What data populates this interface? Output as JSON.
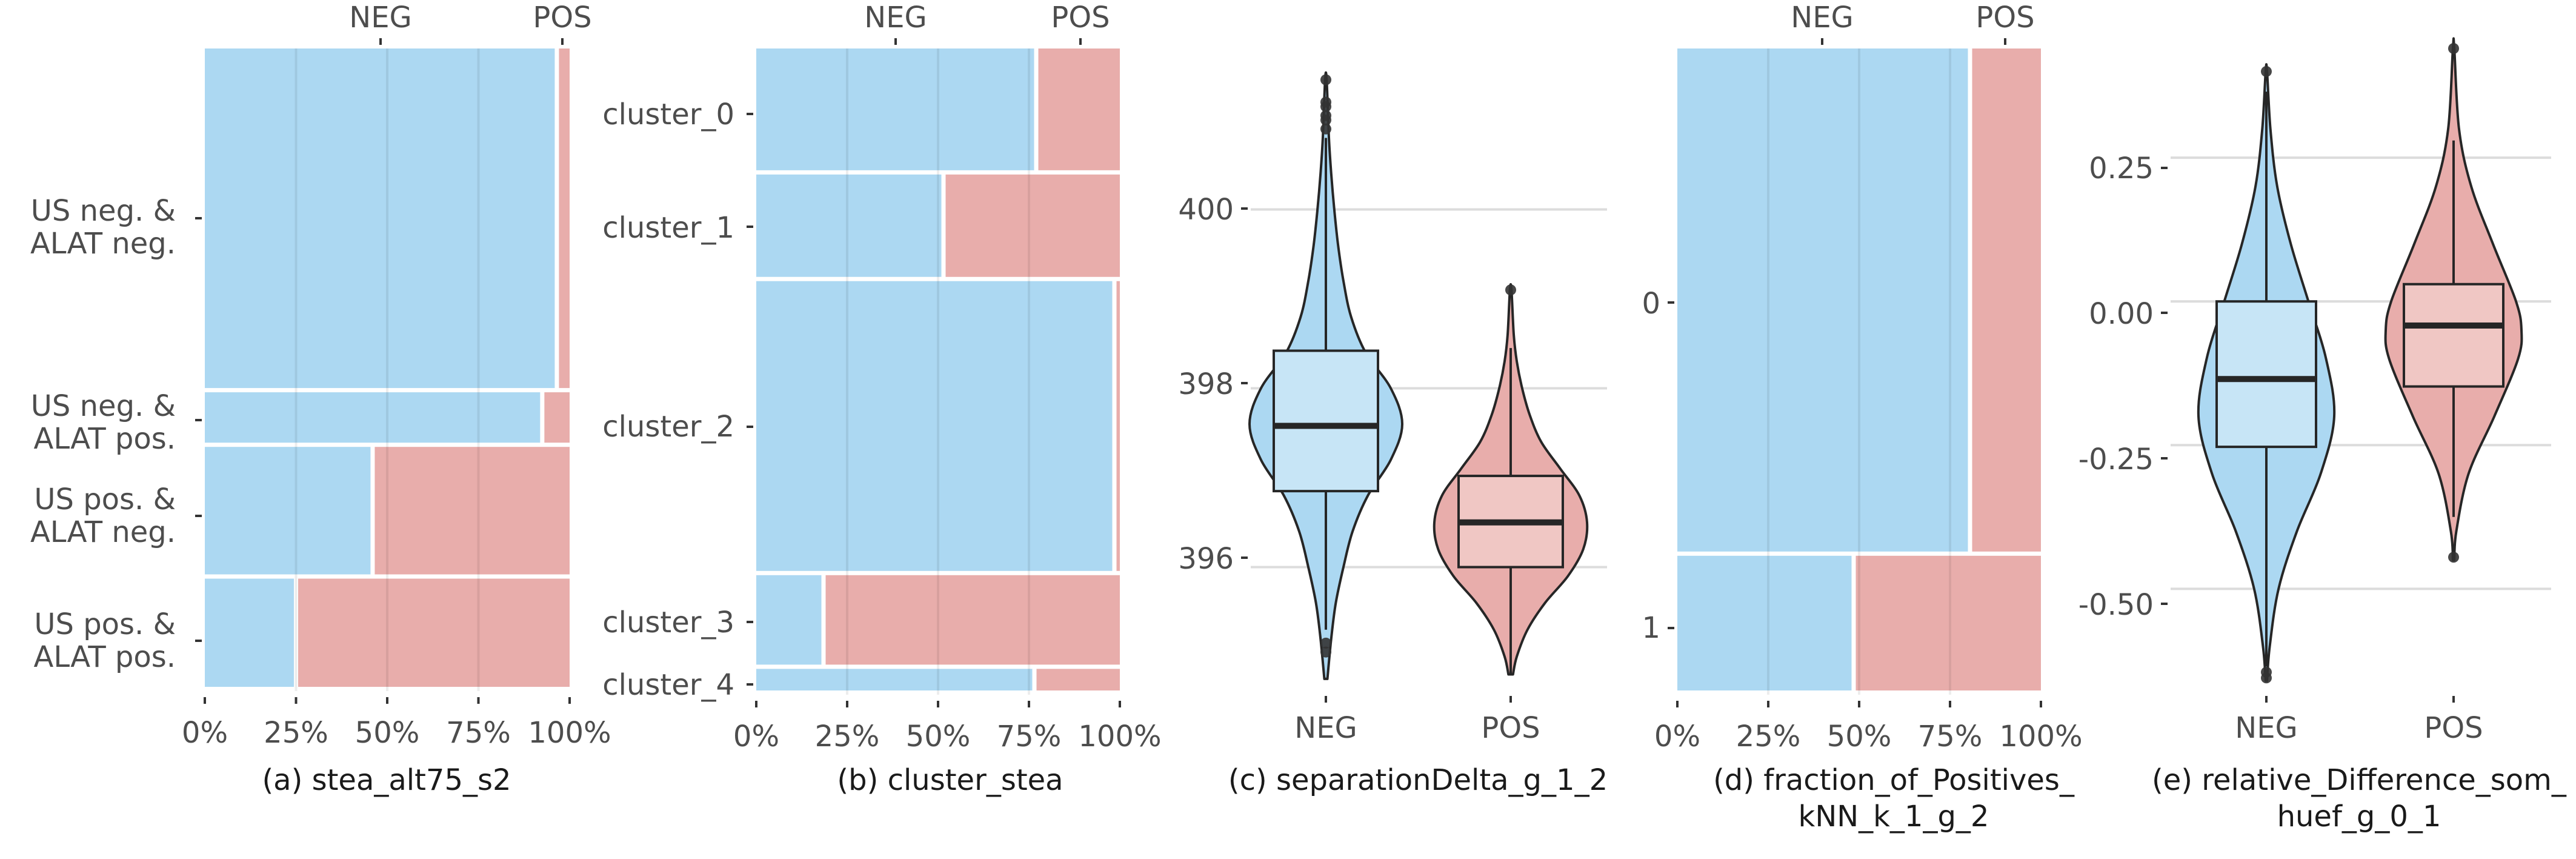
{
  "colors": {
    "neg": "#acd8f2",
    "pos": "#e8adab",
    "neg_box": "#c7e5f6",
    "pos_box": "#f0c7c4",
    "grid": "#dcdcdc",
    "outline": "#262626"
  },
  "panel_a": {
    "caption": "(a) stea_alt75_s2",
    "top_labels": [
      "NEG",
      "POS"
    ],
    "x_ticks": [
      "0%",
      "25%",
      "50%",
      "75%",
      "100%"
    ]
  },
  "panel_b": {
    "caption": "(b) cluster_stea",
    "top_labels": [
      "NEG",
      "POS"
    ],
    "x_ticks": [
      "0%",
      "25%",
      "50%",
      "75%",
      "100%"
    ]
  },
  "panel_c": {
    "caption": "(c) separationDelta_g_1_2",
    "x_labels": [
      "NEG",
      "POS"
    ],
    "y_ticks": [
      "396",
      "398",
      "400"
    ]
  },
  "panel_d": {
    "caption_line1": "(d) fraction_of_Positives_",
    "caption_line2": "kNN_k_1_g_2",
    "top_labels": [
      "NEG",
      "POS"
    ],
    "x_ticks": [
      "0%",
      "25%",
      "50%",
      "75%",
      "100%"
    ]
  },
  "panel_e": {
    "caption_line1": "(e) relative_Difference_som_",
    "caption_line2": "huef_g_0_1",
    "x_labels": [
      "NEG",
      "POS"
    ],
    "y_ticks": [
      "0.25",
      "0.00",
      "-0.25",
      "-0.50"
    ]
  },
  "chart_data": [
    {
      "type": "mosaic",
      "name": "(a) stea_alt75_s2",
      "x_categories": [
        "NEG",
        "POS"
      ],
      "x_range": [
        0,
        100
      ],
      "rows": [
        {
          "label": "US neg. & ALAT neg.",
          "share": 0.535,
          "neg_pct": 96.5,
          "pos_pct": 3.5
        },
        {
          "label": "US neg. & ALAT pos.",
          "share": 0.085,
          "neg_pct": 92.5,
          "pos_pct": 7.5
        },
        {
          "label": "US pos. & ALAT neg.",
          "share": 0.205,
          "neg_pct": 46.0,
          "pos_pct": 54.0
        },
        {
          "label": "US pos. & ALAT pos.",
          "share": 0.175,
          "neg_pct": 25.0,
          "pos_pct": 75.0
        }
      ]
    },
    {
      "type": "mosaic",
      "name": "(b) cluster_stea",
      "x_categories": [
        "NEG",
        "POS"
      ],
      "x_range": [
        0,
        100
      ],
      "rows": [
        {
          "label": "cluster_0",
          "share": 0.195,
          "neg_pct": 77.0,
          "pos_pct": 23.0
        },
        {
          "label": "cluster_1",
          "share": 0.165,
          "neg_pct": 51.5,
          "pos_pct": 48.5
        },
        {
          "label": "cluster_2",
          "share": 0.455,
          "neg_pct": 98.5,
          "pos_pct": 1.5
        },
        {
          "label": "cluster_3",
          "share": 0.145,
          "neg_pct": 18.5,
          "pos_pct": 81.5
        },
        {
          "label": "cluster_4",
          "share": 0.04,
          "neg_pct": 76.5,
          "pos_pct": 23.5
        }
      ]
    },
    {
      "type": "violin-box",
      "name": "(c) separationDelta_g_1_2",
      "categories": [
        "NEG",
        "POS"
      ],
      "y_range": [
        394.6,
        401.8
      ],
      "y_ticks": [
        396,
        398,
        400
      ],
      "series": [
        {
          "name": "NEG",
          "whisker_low": 395.3,
          "q1": 396.85,
          "median": 397.58,
          "q3": 398.42,
          "whisker_high": 400.8,
          "outliers": [
            395.05,
            395.15,
            400.9,
            401.0,
            401.05,
            401.15,
            401.2,
            401.45
          ],
          "density": [
            [
              394.75,
              0.02
            ],
            [
              395.2,
              0.07
            ],
            [
              395.6,
              0.13
            ],
            [
              396.0,
              0.23
            ],
            [
              396.4,
              0.35
            ],
            [
              396.8,
              0.55
            ],
            [
              397.2,
              0.85
            ],
            [
              397.6,
              1.0
            ],
            [
              398.0,
              0.85
            ],
            [
              398.4,
              0.52
            ],
            [
              398.8,
              0.33
            ],
            [
              399.2,
              0.23
            ],
            [
              399.6,
              0.16
            ],
            [
              400.0,
              0.11
            ],
            [
              400.4,
              0.07
            ],
            [
              400.8,
              0.04
            ],
            [
              401.45,
              0.01
            ]
          ]
        },
        {
          "name": "POS",
          "whisker_low": 394.8,
          "q1": 396.0,
          "median": 396.5,
          "q3": 397.02,
          "whisker_high": 398.45,
          "outliers": [
            399.1
          ],
          "density": [
            [
              394.8,
              0.03
            ],
            [
              395.0,
              0.08
            ],
            [
              395.3,
              0.22
            ],
            [
              395.6,
              0.45
            ],
            [
              395.9,
              0.75
            ],
            [
              396.2,
              0.95
            ],
            [
              396.5,
              1.0
            ],
            [
              396.8,
              0.9
            ],
            [
              397.1,
              0.65
            ],
            [
              397.4,
              0.4
            ],
            [
              397.7,
              0.25
            ],
            [
              398.0,
              0.15
            ],
            [
              398.3,
              0.08
            ],
            [
              398.6,
              0.04
            ],
            [
              399.1,
              0.01
            ]
          ]
        }
      ]
    },
    {
      "type": "mosaic",
      "name": "(d) fraction_of_Positives_kNN_k_1_g_2",
      "x_categories": [
        "NEG",
        "POS"
      ],
      "x_range": [
        0,
        100
      ],
      "rows": [
        {
          "label": "0",
          "share": 0.785,
          "neg_pct": 80.5,
          "pos_pct": 19.5
        },
        {
          "label": "1",
          "share": 0.215,
          "neg_pct": 48.5,
          "pos_pct": 51.5
        }
      ]
    },
    {
      "type": "violin-box",
      "name": "(e) relative_Difference_som_huef_g_0_1",
      "categories": [
        "NEG",
        "POS"
      ],
      "y_range": [
        -0.68,
        0.44
      ],
      "y_ticks": [
        -0.5,
        -0.25,
        0.0,
        0.25
      ],
      "series": [
        {
          "name": "NEG",
          "whisker_low": -0.635,
          "q1": -0.253,
          "median": -0.135,
          "q3": 0.0,
          "whisker_high": 0.365,
          "outliers": [
            -0.645,
            -0.655,
            0.4
          ],
          "density": [
            [
              -0.66,
              0.01
            ],
            [
              -0.6,
              0.05
            ],
            [
              -0.5,
              0.18
            ],
            [
              -0.4,
              0.45
            ],
            [
              -0.3,
              0.8
            ],
            [
              -0.2,
              1.0
            ],
            [
              -0.1,
              0.88
            ],
            [
              0.0,
              0.62
            ],
            [
              0.1,
              0.36
            ],
            [
              0.2,
              0.16
            ],
            [
              0.3,
              0.06
            ],
            [
              0.4,
              0.01
            ]
          ]
        },
        {
          "name": "POS",
          "whisker_low": -0.375,
          "q1": -0.148,
          "median": -0.042,
          "q3": 0.03,
          "whisker_high": 0.28,
          "outliers": [
            -0.445,
            0.44
          ],
          "density": [
            [
              -0.45,
              0.01
            ],
            [
              -0.4,
              0.04
            ],
            [
              -0.3,
              0.22
            ],
            [
              -0.2,
              0.6
            ],
            [
              -0.1,
              0.95
            ],
            [
              -0.05,
              1.0
            ],
            [
              0.0,
              0.92
            ],
            [
              0.1,
              0.58
            ],
            [
              0.2,
              0.26
            ],
            [
              0.3,
              0.08
            ],
            [
              0.44,
              0.01
            ]
          ]
        }
      ]
    }
  ]
}
